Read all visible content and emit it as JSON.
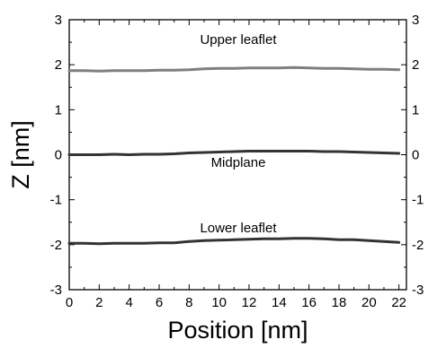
{
  "chart_data": {
    "type": "line",
    "title": "",
    "xlabel": "Position [nm]",
    "ylabel": "Z [nm]",
    "xlim": [
      0,
      22.5
    ],
    "ylim": [
      -3,
      3
    ],
    "xticks": [
      0,
      2,
      4,
      6,
      8,
      10,
      12,
      14,
      16,
      18,
      20,
      22
    ],
    "yticks": [
      -3,
      -2,
      -1,
      0,
      1,
      2,
      3
    ],
    "right_axis_ticks": true,
    "grid": false,
    "annotations": [
      "Upper leaflet",
      "Midplane",
      "Lower leaflet"
    ],
    "series": [
      {
        "color": "#7f7f7f",
        "x": [
          0,
          1,
          2,
          3,
          4,
          5,
          6,
          7,
          8,
          9,
          10,
          11,
          12,
          13,
          14,
          15,
          16,
          17,
          18,
          19,
          20,
          21,
          22
        ],
        "y": [
          1.87,
          1.87,
          1.86,
          1.87,
          1.87,
          1.87,
          1.88,
          1.88,
          1.89,
          1.91,
          1.92,
          1.92,
          1.93,
          1.93,
          1.93,
          1.94,
          1.93,
          1.92,
          1.92,
          1.91,
          1.9,
          1.9,
          1.89
        ]
      },
      {
        "color": "#333333",
        "x": [
          0,
          1,
          2,
          3,
          4,
          5,
          6,
          7,
          8,
          9,
          10,
          11,
          12,
          13,
          14,
          15,
          16,
          17,
          18,
          19,
          20,
          21,
          22
        ],
        "y": [
          0.0,
          0.0,
          0.0,
          0.01,
          0.0,
          0.01,
          0.01,
          0.02,
          0.04,
          0.05,
          0.06,
          0.07,
          0.08,
          0.08,
          0.08,
          0.08,
          0.08,
          0.07,
          0.07,
          0.06,
          0.05,
          0.04,
          0.03
        ]
      },
      {
        "color": "#333333",
        "x": [
          0,
          1,
          2,
          3,
          4,
          5,
          6,
          7,
          8,
          9,
          10,
          11,
          12,
          13,
          14,
          15,
          16,
          17,
          18,
          19,
          20,
          21,
          22
        ],
        "y": [
          -1.97,
          -1.97,
          -1.98,
          -1.97,
          -1.97,
          -1.97,
          -1.96,
          -1.96,
          -1.93,
          -1.91,
          -1.9,
          -1.89,
          -1.88,
          -1.87,
          -1.87,
          -1.86,
          -1.86,
          -1.87,
          -1.89,
          -1.89,
          -1.91,
          -1.93,
          -1.95
        ]
      }
    ]
  }
}
